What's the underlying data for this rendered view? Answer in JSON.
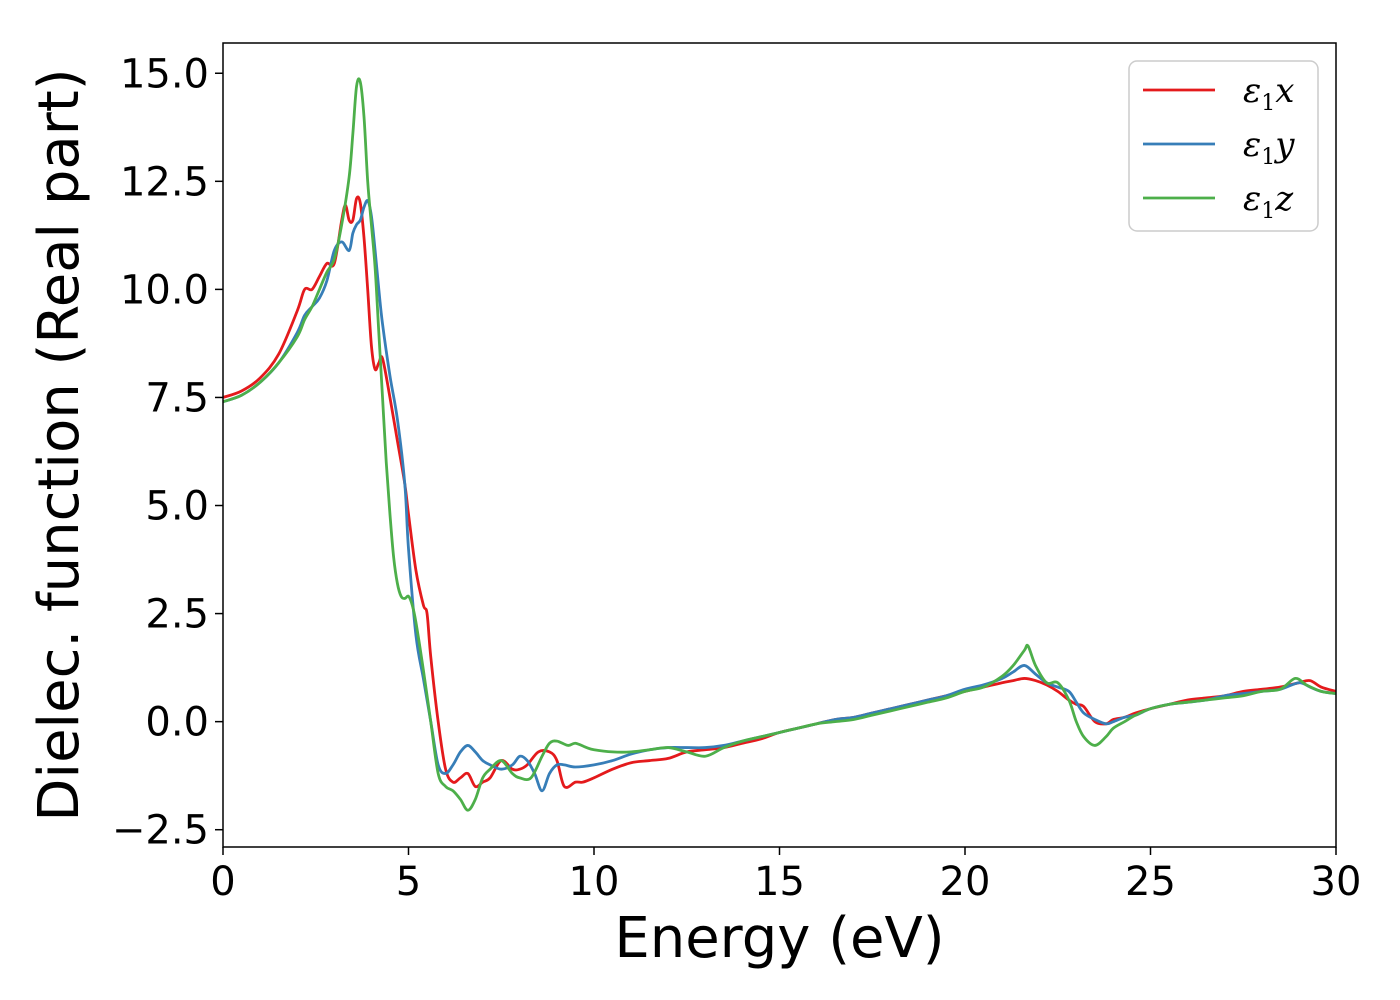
{
  "chart_data": {
    "type": "line",
    "xlabel": "Energy (eV)",
    "ylabel": "Dielec. function (Real part)",
    "xlim": [
      0,
      30
    ],
    "ylim": [
      -2.9,
      15.7
    ],
    "xticks": [
      0,
      5,
      10,
      15,
      20,
      25,
      30
    ],
    "yticks": [
      -2.5,
      0.0,
      2.5,
      5.0,
      7.5,
      10.0,
      12.5,
      15.0
    ],
    "xtick_labels": [
      "0",
      "5",
      "10",
      "15",
      "20",
      "25",
      "30"
    ],
    "ytick_labels": [
      "−2.5",
      "0.0",
      "2.5",
      "5.0",
      "7.5",
      "10.0",
      "12.5",
      "15.0"
    ],
    "grid": false,
    "legend_position": "top-right",
    "series": [
      {
        "name": "ε",
        "subscript": "1",
        "suffix": "x",
        "color": "#e41a1c",
        "x": [
          0,
          0.5,
          1.0,
          1.5,
          2.0,
          2.2,
          2.4,
          2.6,
          2.8,
          3.0,
          3.2,
          3.3,
          3.4,
          3.5,
          3.6,
          3.7,
          3.8,
          3.9,
          4.0,
          4.1,
          4.2,
          4.3,
          4.5,
          4.7,
          4.9,
          5.0,
          5.2,
          5.4,
          5.5,
          5.6,
          5.8,
          6.0,
          6.2,
          6.4,
          6.6,
          6.8,
          7.0,
          7.2,
          7.5,
          7.8,
          8.0,
          8.2,
          8.5,
          8.8,
          9.0,
          9.2,
          9.5,
          9.7,
          10.0,
          10.5,
          11.0,
          11.5,
          12.0,
          12.5,
          13.0,
          13.5,
          14.0,
          14.5,
          15.0,
          15.5,
          16.0,
          16.5,
          17.0,
          17.5,
          18.0,
          18.5,
          19.0,
          19.5,
          20.0,
          20.5,
          21.0,
          21.3,
          21.6,
          21.9,
          22.2,
          22.5,
          22.8,
          23.0,
          23.2,
          23.5,
          23.8,
          24.0,
          24.3,
          24.6,
          25.0,
          25.5,
          26.0,
          26.5,
          27.0,
          27.5,
          28.0,
          28.5,
          29.0,
          29.3,
          29.6,
          30.0
        ],
        "y": [
          7.5,
          7.65,
          7.95,
          8.5,
          9.5,
          10.0,
          10.0,
          10.3,
          10.6,
          10.6,
          11.6,
          11.95,
          11.6,
          11.6,
          12.1,
          12.0,
          11.2,
          10.0,
          8.7,
          8.15,
          8.3,
          8.4,
          7.5,
          6.5,
          5.5,
          4.8,
          3.5,
          2.7,
          2.5,
          1.5,
          0.0,
          -1.1,
          -1.4,
          -1.3,
          -1.2,
          -1.5,
          -1.4,
          -1.3,
          -0.9,
          -1.1,
          -1.1,
          -1.0,
          -0.7,
          -0.7,
          -0.9,
          -1.5,
          -1.4,
          -1.4,
          -1.3,
          -1.1,
          -0.95,
          -0.9,
          -0.85,
          -0.7,
          -0.65,
          -0.6,
          -0.5,
          -0.4,
          -0.25,
          -0.15,
          -0.05,
          0.05,
          0.1,
          0.2,
          0.3,
          0.4,
          0.5,
          0.6,
          0.7,
          0.8,
          0.9,
          0.95,
          1.0,
          0.95,
          0.85,
          0.7,
          0.5,
          0.4,
          0.35,
          0.0,
          -0.05,
          0.05,
          0.1,
          0.2,
          0.3,
          0.4,
          0.5,
          0.55,
          0.6,
          0.7,
          0.75,
          0.8,
          0.9,
          0.95,
          0.8,
          0.7
        ]
      },
      {
        "name": "ε",
        "subscript": "1",
        "suffix": "y",
        "color": "#377eb8",
        "x": [
          0,
          0.5,
          1.0,
          1.5,
          2.0,
          2.2,
          2.4,
          2.6,
          2.8,
          3.0,
          3.2,
          3.4,
          3.5,
          3.6,
          3.7,
          3.8,
          3.9,
          4.0,
          4.1,
          4.2,
          4.3,
          4.5,
          4.7,
          4.9,
          5.0,
          5.2,
          5.4,
          5.6,
          5.8,
          6.0,
          6.2,
          6.4,
          6.6,
          6.8,
          7.0,
          7.2,
          7.5,
          7.8,
          8.0,
          8.2,
          8.4,
          8.6,
          8.8,
          9.0,
          9.2,
          9.5,
          10.0,
          10.5,
          11.0,
          11.5,
          12.0,
          12.5,
          13.0,
          13.5,
          14.0,
          14.5,
          15.0,
          15.5,
          16.0,
          16.5,
          17.0,
          17.5,
          18.0,
          18.5,
          19.0,
          19.5,
          20.0,
          20.5,
          21.0,
          21.3,
          21.6,
          21.9,
          22.2,
          22.5,
          22.8,
          23.0,
          23.2,
          23.5,
          23.8,
          24.0,
          24.3,
          24.6,
          25.0,
          25.5,
          26.0,
          26.5,
          27.0,
          27.5,
          28.0,
          28.5,
          29.0,
          29.3,
          29.6,
          30.0
        ],
        "y": [
          7.4,
          7.55,
          7.85,
          8.3,
          9.0,
          9.4,
          9.6,
          9.8,
          10.2,
          10.9,
          11.1,
          10.9,
          11.3,
          11.5,
          11.6,
          11.9,
          12.05,
          11.7,
          10.9,
          10.0,
          9.2,
          8.0,
          7.0,
          5.5,
          4.0,
          2.0,
          1.0,
          0.0,
          -1.0,
          -1.2,
          -1.0,
          -0.7,
          -0.55,
          -0.7,
          -0.9,
          -1.0,
          -1.1,
          -1.0,
          -0.8,
          -0.9,
          -1.2,
          -1.6,
          -1.2,
          -1.0,
          -1.0,
          -1.05,
          -1.0,
          -0.9,
          -0.75,
          -0.65,
          -0.6,
          -0.6,
          -0.6,
          -0.55,
          -0.45,
          -0.35,
          -0.25,
          -0.15,
          -0.05,
          0.05,
          0.1,
          0.2,
          0.3,
          0.4,
          0.5,
          0.6,
          0.75,
          0.85,
          1.0,
          1.15,
          1.3,
          1.1,
          0.9,
          0.8,
          0.7,
          0.45,
          0.2,
          0.05,
          -0.05,
          0.0,
          0.1,
          0.15,
          0.3,
          0.4,
          0.45,
          0.5,
          0.6,
          0.65,
          0.7,
          0.75,
          0.9,
          0.8,
          0.7,
          0.65
        ]
      },
      {
        "name": "ε",
        "subscript": "1",
        "suffix": "z",
        "color": "#4daf4a",
        "x": [
          0,
          0.5,
          1.0,
          1.5,
          2.0,
          2.2,
          2.4,
          2.6,
          2.8,
          3.0,
          3.2,
          3.4,
          3.5,
          3.6,
          3.7,
          3.8,
          3.9,
          4.0,
          4.1,
          4.2,
          4.3,
          4.4,
          4.5,
          4.6,
          4.7,
          4.8,
          4.9,
          5.0,
          5.1,
          5.2,
          5.4,
          5.6,
          5.8,
          6.0,
          6.2,
          6.4,
          6.6,
          6.8,
          7.0,
          7.2,
          7.5,
          7.8,
          8.0,
          8.3,
          8.6,
          8.8,
          9.0,
          9.3,
          9.5,
          9.8,
          10.0,
          10.5,
          11.0,
          11.5,
          12.0,
          12.5,
          13.0,
          13.5,
          14.0,
          14.5,
          15.0,
          15.5,
          16.0,
          16.5,
          17.0,
          17.5,
          18.0,
          18.5,
          19.0,
          19.5,
          20.0,
          20.5,
          21.0,
          21.3,
          21.6,
          21.7,
          21.9,
          22.2,
          22.5,
          22.8,
          23.0,
          23.2,
          23.5,
          23.8,
          24.0,
          24.3,
          24.6,
          25.0,
          25.5,
          26.0,
          26.5,
          27.0,
          27.5,
          28.0,
          28.5,
          28.9,
          29.2,
          29.6,
          30.0
        ],
        "y": [
          7.4,
          7.55,
          7.85,
          8.3,
          8.9,
          9.3,
          9.6,
          10.0,
          10.4,
          10.7,
          11.5,
          12.6,
          13.6,
          14.7,
          14.8,
          14.0,
          12.5,
          11.5,
          10.5,
          9.0,
          7.5,
          6.0,
          4.8,
          3.8,
          3.2,
          2.9,
          2.85,
          2.9,
          2.7,
          2.3,
          1.2,
          0.0,
          -1.2,
          -1.5,
          -1.6,
          -1.8,
          -2.05,
          -1.8,
          -1.3,
          -1.1,
          -0.9,
          -1.2,
          -1.3,
          -1.3,
          -0.8,
          -0.5,
          -0.45,
          -0.55,
          -0.5,
          -0.6,
          -0.65,
          -0.7,
          -0.7,
          -0.65,
          -0.6,
          -0.7,
          -0.8,
          -0.6,
          -0.45,
          -0.35,
          -0.25,
          -0.15,
          -0.05,
          0.0,
          0.05,
          0.15,
          0.25,
          0.35,
          0.45,
          0.55,
          0.7,
          0.8,
          1.05,
          1.3,
          1.65,
          1.75,
          1.3,
          0.9,
          0.9,
          0.5,
          0.0,
          -0.35,
          -0.55,
          -0.35,
          -0.15,
          0.0,
          0.15,
          0.3,
          0.4,
          0.45,
          0.5,
          0.55,
          0.6,
          0.7,
          0.75,
          1.0,
          0.85,
          0.7,
          0.65
        ]
      }
    ]
  }
}
